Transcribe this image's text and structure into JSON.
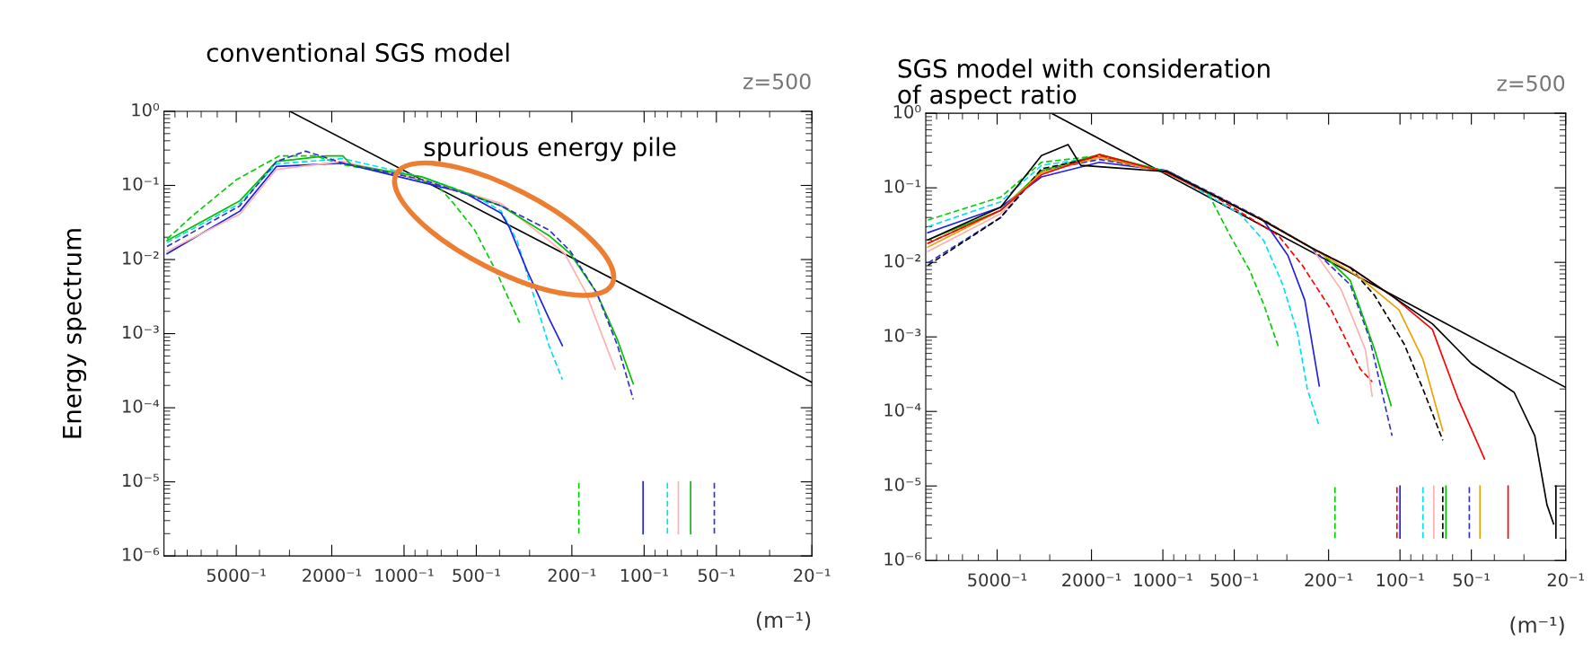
{
  "chart_data": [
    {
      "type": "line",
      "title": "conventional SGS model",
      "ylabel": "Energy spectrum",
      "xlabel": "(m⁻¹)",
      "log": "xy",
      "grid": false,
      "annotations": [
        "z=500",
        "spurious energy pile"
      ],
      "xlim": [
        10000,
        20
      ],
      "ylim": [
        1e-06,
        1
      ],
      "xticks": [
        {
          "value": 5000,
          "label": "5000⁻¹"
        },
        {
          "value": 2000,
          "label": "2000⁻¹"
        },
        {
          "value": 1000,
          "label": "1000⁻¹"
        },
        {
          "value": 500,
          "label": "500⁻¹"
        },
        {
          "value": 200,
          "label": "200⁻¹"
        },
        {
          "value": 100,
          "label": "100⁻¹"
        },
        {
          "value": 50,
          "label": "50⁻¹"
        },
        {
          "value": 20,
          "label": "20⁻¹"
        }
      ],
      "yticks": [
        {
          "value": 1e-06,
          "label": "10⁻⁶"
        },
        {
          "value": 1e-05,
          "label": "10⁻⁵"
        },
        {
          "value": 0.0001,
          "label": "10⁻⁴"
        },
        {
          "value": 0.001,
          "label": "10⁻³"
        },
        {
          "value": 0.01,
          "label": "10⁻²"
        },
        {
          "value": 0.1,
          "label": "10⁻¹"
        },
        {
          "value": 1,
          "label": "10⁰"
        }
      ],
      "series": [
        {
          "color": "#000000",
          "line_style": "solid",
          "x": [
            2990,
            20
          ],
          "values": [
            1,
            0.00022
          ]
        },
        {
          "color": "#00d000",
          "line_style": "dashed",
          "x": [
            9710,
            7460,
            4980,
            3310,
            2340,
            1790,
            1030,
            725,
            621,
            508,
            413,
            330
          ],
          "values": [
            0.019,
            0.041,
            0.12,
            0.25,
            0.25,
            0.19,
            0.14,
            0.1,
            0.057,
            0.025,
            0.0069,
            0.0014
          ]
        },
        {
          "color": "#00e0f0",
          "line_style": "dashed",
          "x": [
            9710,
            4830,
            3400,
            1800,
            840,
            508,
            394,
            338,
            291,
            249,
            219
          ],
          "values": [
            0.017,
            0.057,
            0.195,
            0.23,
            0.13,
            0.073,
            0.045,
            0.018,
            0.0036,
            0.00069,
            0.00024
          ]
        },
        {
          "color": "#2020e0",
          "line_style": "solid",
          "x": [
            9710,
            4830,
            3400,
            1800,
            840,
            562,
            394,
            365,
            306,
            249,
            219
          ],
          "values": [
            0.012,
            0.045,
            0.18,
            0.2,
            0.11,
            0.08,
            0.042,
            0.0275,
            0.0069,
            0.0016,
            0.00069
          ]
        },
        {
          "color": "#ffb0b0",
          "line_style": "solid",
          "x": [
            9710,
            4830,
            3400,
            1800,
            840,
            394,
            249,
            214,
            175,
            150,
            132
          ],
          "values": [
            0.013,
            0.041,
            0.165,
            0.21,
            0.12,
            0.057,
            0.018,
            0.012,
            0.0036,
            0.00097,
            0.00033
          ]
        },
        {
          "color": "#00c000",
          "line_style": "solid",
          "x": [
            9710,
            4830,
            3400,
            2100,
            1800,
            1660,
            840,
            394,
            249,
            203,
            158,
            129,
            111
          ],
          "values": [
            0.018,
            0.062,
            0.21,
            0.25,
            0.25,
            0.19,
            0.13,
            0.053,
            0.021,
            0.012,
            0.0036,
            0.00082,
            0.00021
          ]
        },
        {
          "color": "#3030d0",
          "line_style": "dashed",
          "x": [
            9710,
            4830,
            3400,
            2570,
            1800,
            840,
            394,
            249,
            203,
            158,
            129,
            111
          ],
          "values": [
            0.015,
            0.053,
            0.21,
            0.29,
            0.2,
            0.12,
            0.053,
            0.025,
            0.013,
            0.0036,
            0.00069,
            0.00013
          ]
        },
        {
          "color": "#00d000",
          "line_style": "dashed",
          "x": [
            187,
            187
          ],
          "values": [
            2e-06,
            1e-05
          ]
        },
        {
          "color": "#2020e0",
          "line_style": "solid",
          "x": [
            101,
            101
          ],
          "values": [
            2e-06,
            1e-05
          ]
        },
        {
          "color": "#00e0f0",
          "line_style": "dashed",
          "x": [
            80,
            80
          ],
          "values": [
            2e-06,
            1e-05
          ]
        },
        {
          "color": "#ffb0b0",
          "line_style": "solid",
          "x": [
            72,
            72
          ],
          "values": [
            2e-06,
            1e-05
          ]
        },
        {
          "color": "#00c000",
          "line_style": "solid",
          "x": [
            64,
            64
          ],
          "values": [
            2e-06,
            1e-05
          ]
        },
        {
          "color": "#3030d0",
          "line_style": "dashed",
          "x": [
            51,
            51
          ],
          "values": [
            2e-06,
            1e-05
          ]
        }
      ]
    },
    {
      "type": "line",
      "title": "SGS model with consideration\nof aspect ratio",
      "xlabel": "(m⁻¹)",
      "log": "xy",
      "grid": false,
      "annotations": [
        "z=500"
      ],
      "xlim": [
        10000,
        20
      ],
      "ylim": [
        1e-06,
        1
      ],
      "xticks": [
        {
          "value": 5000,
          "label": "5000⁻¹"
        },
        {
          "value": 2000,
          "label": "2000⁻¹"
        },
        {
          "value": 1000,
          "label": "1000⁻¹"
        },
        {
          "value": 500,
          "label": "500⁻¹"
        },
        {
          "value": 200,
          "label": "200⁻¹"
        },
        {
          "value": 100,
          "label": "100⁻¹"
        },
        {
          "value": 50,
          "label": "50⁻¹"
        },
        {
          "value": 20,
          "label": "20⁻¹"
        }
      ],
      "yticks": [
        {
          "value": 1e-06,
          "label": "10⁻⁶"
        },
        {
          "value": 1e-05,
          "label": "10⁻⁵"
        },
        {
          "value": 0.0001,
          "label": "10⁻⁴"
        },
        {
          "value": 0.001,
          "label": "10⁻³"
        },
        {
          "value": 0.01,
          "label": "10⁻²"
        },
        {
          "value": 0.1,
          "label": "10⁻¹"
        },
        {
          "value": 1,
          "label": "10⁰"
        }
      ],
      "series": [
        {
          "color": "#000000",
          "line_style": "solid",
          "x": [
            2950,
            20
          ],
          "values": [
            1,
            0.00021
          ]
        },
        {
          "color": "#00d000",
          "line_style": "dashed",
          "x": [
            9800,
            4830,
            3250,
            1850,
            962,
            645,
            521,
            431,
            375,
            326
          ],
          "values": [
            0.037,
            0.075,
            0.22,
            0.27,
            0.165,
            0.085,
            0.023,
            0.0079,
            0.0027,
            0.00074
          ]
        },
        {
          "color": "#00e0f0",
          "line_style": "dashed",
          "x": [
            9800,
            4830,
            3250,
            1850,
            962,
            474,
            375,
            312,
            270,
            246,
            219
          ],
          "values": [
            0.03,
            0.065,
            0.2,
            0.26,
            0.165,
            0.045,
            0.0195,
            0.005,
            0.0011,
            0.0002,
            6.3e-05
          ]
        },
        {
          "color": "#2020e0",
          "line_style": "solid",
          "x": [
            9800,
            4830,
            3250,
            1850,
            962,
            599,
            375,
            297,
            252,
            219
          ],
          "values": [
            0.025,
            0.055,
            0.14,
            0.22,
            0.17,
            0.077,
            0.036,
            0.0124,
            0.0031,
            0.00022
          ]
        },
        {
          "color": "#ff0000",
          "line_style": "dashed",
          "x": [
            9800,
            4830,
            3250,
            1850,
            962,
            599,
            326,
            258,
            195,
            147,
            131
          ],
          "values": [
            0.018,
            0.05,
            0.16,
            0.27,
            0.16,
            0.075,
            0.023,
            0.0091,
            0.0023,
            0.00037,
            0.00025
          ]
        },
        {
          "color": "#ffb0b0",
          "line_style": "solid",
          "x": [
            9800,
            4830,
            3250,
            1850,
            962,
            599,
            375,
            235,
            177,
            140,
            131
          ],
          "values": [
            0.014,
            0.045,
            0.16,
            0.25,
            0.16,
            0.077,
            0.036,
            0.0155,
            0.0043,
            0.00068,
            0.00016
          ]
        },
        {
          "color": "#3030d0",
          "line_style": "dashed",
          "x": [
            9800,
            4830,
            3250,
            1850,
            962,
            599,
            375,
            235,
            162,
            134,
            108
          ],
          "values": [
            0.0098,
            0.04,
            0.17,
            0.24,
            0.17,
            0.08,
            0.037,
            0.0155,
            0.005,
            0.00093,
            4.7e-05
          ]
        },
        {
          "color": "#00c000",
          "line_style": "solid",
          "x": [
            9800,
            4830,
            3250,
            1850,
            962,
            599,
            375,
            214,
            162,
            128,
            109
          ],
          "values": [
            0.02,
            0.05,
            0.17,
            0.28,
            0.165,
            0.077,
            0.036,
            0.0133,
            0.0057,
            0.00068,
            0.00012
          ]
        },
        {
          "color": "#000000",
          "line_style": "dashed",
          "x": [
            9800,
            4830,
            3250,
            1850,
            962,
            599,
            375,
            235,
            162,
            128,
            96,
            80,
            66
          ],
          "values": [
            0.0091,
            0.04,
            0.18,
            0.26,
            0.16,
            0.077,
            0.036,
            0.0155,
            0.0085,
            0.0036,
            0.0008,
            0.0002,
            4.1e-05
          ]
        },
        {
          "color": "#f0a000",
          "line_style": "solid",
          "x": [
            9800,
            4830,
            3250,
            1850,
            962,
            599,
            375,
            235,
            147,
            101,
            80,
            66
          ],
          "values": [
            0.016,
            0.05,
            0.16,
            0.26,
            0.16,
            0.077,
            0.036,
            0.0155,
            0.0062,
            0.0023,
            0.0005,
            5.5e-05
          ]
        },
        {
          "color": "#ff0000",
          "line_style": "solid",
          "x": [
            9800,
            4830,
            3250,
            1850,
            962,
            599,
            375,
            235,
            162,
            106,
            73,
            57,
            44
          ],
          "values": [
            0.018,
            0.05,
            0.15,
            0.28,
            0.16,
            0.077,
            0.036,
            0.0155,
            0.0085,
            0.0034,
            0.00126,
            0.00015,
            2.3e-05
          ]
        },
        {
          "color": "#000000",
          "line_style": "solid",
          "x": [
            9800,
            4830,
            3250,
            2510,
            2220,
            962,
            599,
            375,
            235,
            162,
            106,
            73,
            50,
            33,
            27,
            24,
            22.5
          ],
          "values": [
            0.02,
            0.055,
            0.27,
            0.38,
            0.2,
            0.165,
            0.077,
            0.036,
            0.0155,
            0.0085,
            0.0034,
            0.0015,
            0.00044,
            0.00018,
            4.7e-05,
            5.6e-06,
            3.1e-06
          ]
        },
        {
          "color": "#00d000",
          "line_style": "dashed",
          "x": [
            188,
            188
          ],
          "values": [
            2e-06,
            1e-05
          ]
        },
        {
          "color": "#ff0000",
          "line_style": "dashed",
          "x": [
            103,
            103
          ],
          "values": [
            2e-06,
            1e-05
          ]
        },
        {
          "color": "#2020e0",
          "line_style": "solid",
          "x": [
            100,
            100
          ],
          "values": [
            2e-06,
            1e-05
          ]
        },
        {
          "color": "#00e0f0",
          "line_style": "dashed",
          "x": [
            80,
            80
          ],
          "values": [
            2e-06,
            1e-05
          ]
        },
        {
          "color": "#ffb0b0",
          "line_style": "solid",
          "x": [
            72,
            72
          ],
          "values": [
            2e-06,
            1e-05
          ]
        },
        {
          "color": "#000000",
          "line_style": "dashed",
          "x": [
            66,
            66
          ],
          "values": [
            2e-06,
            1e-05
          ]
        },
        {
          "color": "#00c000",
          "line_style": "solid",
          "x": [
            64,
            64
          ],
          "values": [
            2e-06,
            1e-05
          ]
        },
        {
          "color": "#3030d0",
          "line_style": "dashed",
          "x": [
            51,
            51
          ],
          "values": [
            2e-06,
            1e-05
          ]
        },
        {
          "color": "#f0a000",
          "line_style": "solid",
          "x": [
            46,
            46
          ],
          "values": [
            2e-06,
            1e-05
          ]
        },
        {
          "color": "#ff0000",
          "line_style": "solid",
          "x": [
            35,
            35
          ],
          "values": [
            2e-06,
            1e-05
          ]
        },
        {
          "color": "#000000",
          "line_style": "solid",
          "x": [
            22,
            22
          ],
          "values": [
            2e-06,
            1e-05
          ]
        }
      ]
    }
  ]
}
